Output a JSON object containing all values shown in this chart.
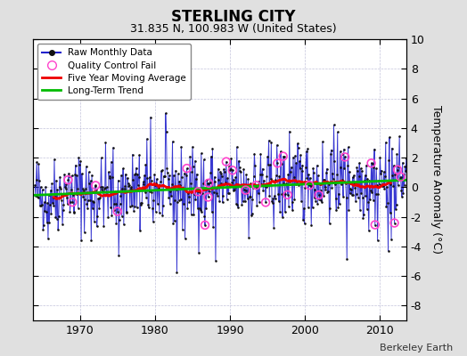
{
  "title": "STERLING CITY",
  "subtitle": "31.835 N, 100.983 W (United States)",
  "ylabel": "Temperature Anomaly (°C)",
  "credit": "Berkeley Earth",
  "start_year": 1964,
  "end_year": 2014,
  "ylim": [
    -9,
    10
  ],
  "yticks": [
    -8,
    -6,
    -4,
    -2,
    0,
    2,
    4,
    6,
    8,
    10
  ],
  "xticks": [
    1970,
    1980,
    1990,
    2000,
    2010
  ],
  "bg_color": "#e0e0e0",
  "plot_bg_color": "#ffffff",
  "line_color": "#2222cc",
  "dot_color": "#111111",
  "ma_color": "#ee0000",
  "trend_color": "#00bb00",
  "qc_color": "#ff44cc",
  "grid_color": "#aaaacc",
  "seed_main": 42,
  "seed_qc": 7,
  "n_spikes": 30,
  "n_qc": 25
}
